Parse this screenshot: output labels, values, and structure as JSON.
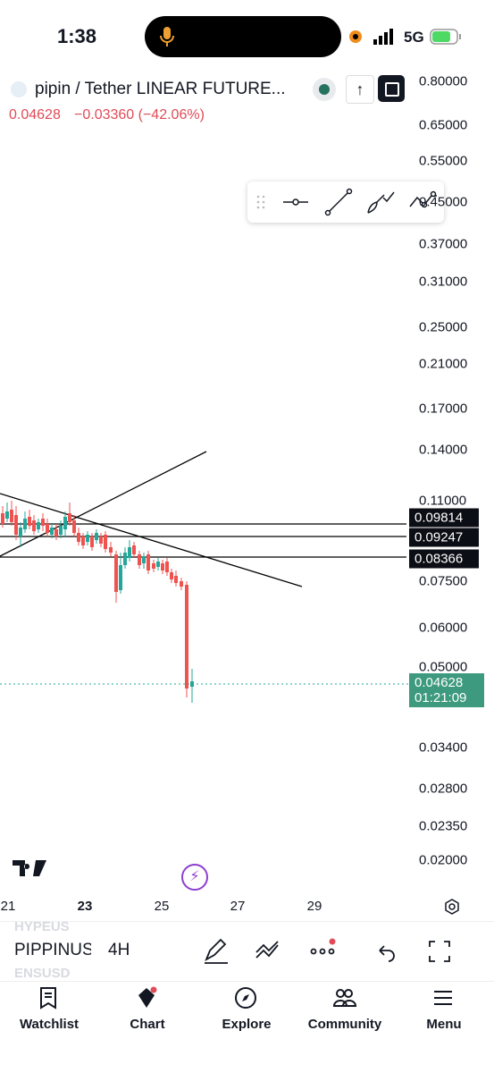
{
  "status": {
    "time": "1:38",
    "network": "5G"
  },
  "header": {
    "symbol": "pipin / Tether LINEAR FUTURE...",
    "price": "0.04628",
    "change": "−0.03360 (−42.06%)"
  },
  "price_axis": [
    "0.80000",
    "0.65000",
    "0.55000",
    "0.45000",
    "0.37000",
    "0.31000",
    "0.25000",
    "0.21000",
    "0.17000",
    "0.14000",
    "0.11000",
    "0.07500",
    "0.06000",
    "0.05000",
    "0.03400",
    "0.02800",
    "0.02350",
    "0.02000"
  ],
  "price_tags": [
    "0.09814",
    "0.09247",
    "0.08366"
  ],
  "current": {
    "price": "0.04628",
    "countdown": "01:21:09"
  },
  "time_axis": [
    "21",
    "23",
    "25",
    "27",
    "29"
  ],
  "symbol_bar": {
    "above": "HYPEUS",
    "symbol": "PIPPINUS",
    "below": "ENSUSD",
    "interval": "4H"
  },
  "nav": [
    "Watchlist",
    "Chart",
    "Explore",
    "Community",
    "Menu"
  ]
}
